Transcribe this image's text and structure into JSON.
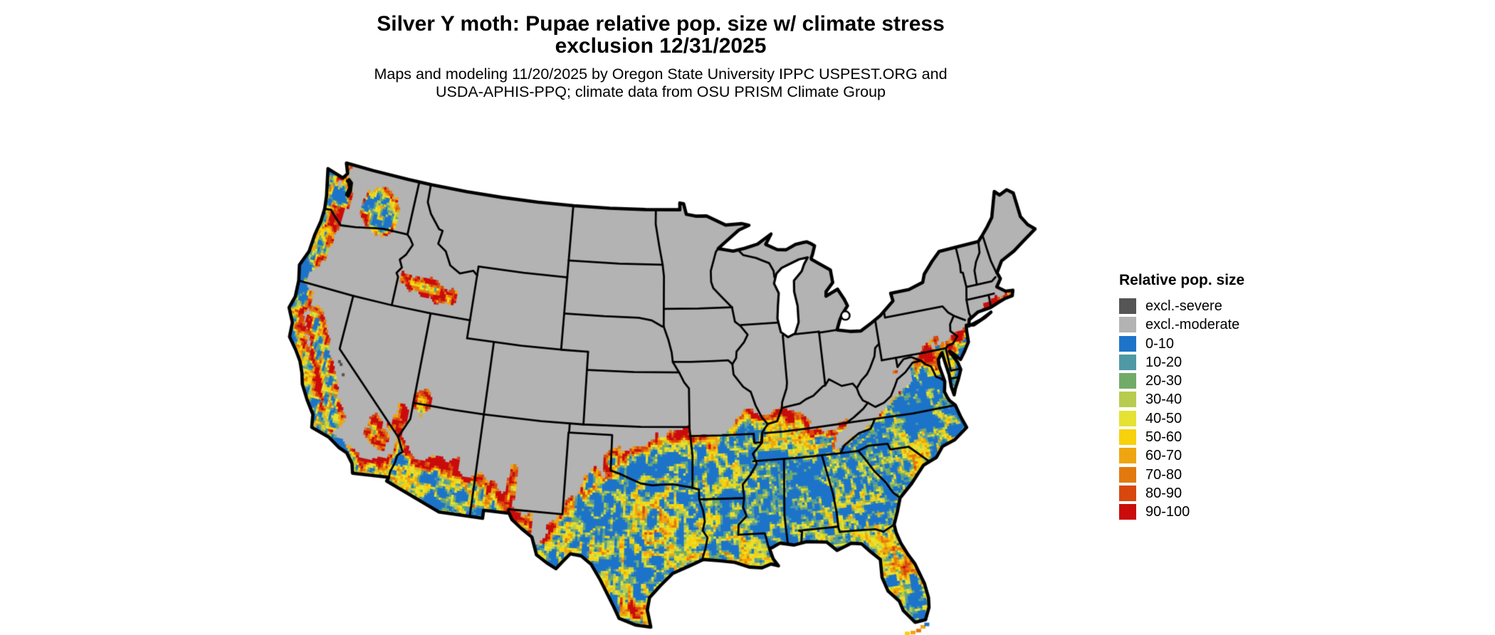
{
  "header": {
    "title_line1": "Silver Y moth: Pupae relative pop. size w/ climate stress",
    "title_line2": "exclusion 12/31/2025",
    "subtitle_line1": "Maps and modeling 11/20/2025 by Oregon State University IPPC USPEST.ORG and",
    "subtitle_line2": "USDA-APHIS-PPQ; climate data from OSU PRISM Climate Group"
  },
  "legend": {
    "title": "Relative pop. size",
    "items": [
      {
        "label": "excl.-severe",
        "color": "#555555"
      },
      {
        "label": "excl.-moderate",
        "color": "#b3b3b3"
      },
      {
        "label": "0-10",
        "color": "#1d74c9"
      },
      {
        "label": "10-20",
        "color": "#4f99a5"
      },
      {
        "label": "20-30",
        "color": "#72ab68"
      },
      {
        "label": "30-40",
        "color": "#b7cc4f"
      },
      {
        "label": "40-50",
        "color": "#e5e233"
      },
      {
        "label": "50-60",
        "color": "#f7d10c"
      },
      {
        "label": "60-70",
        "color": "#efa512"
      },
      {
        "label": "70-80",
        "color": "#e2790f"
      },
      {
        "label": "80-90",
        "color": "#d8470e"
      },
      {
        "label": "90-100",
        "color": "#ca0c0c"
      }
    ]
  },
  "map": {
    "background_color": "#ffffff",
    "excluded_base_color": "#b3b3b3",
    "border_color": "#000000",
    "water_color": "#ffffff"
  }
}
